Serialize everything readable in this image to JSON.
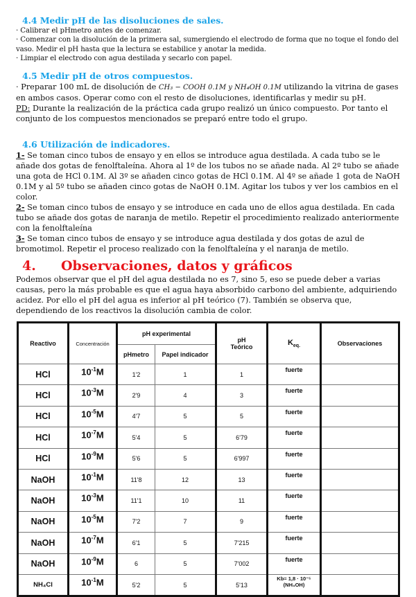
{
  "sections": {
    "s44": {
      "title": "4.4 Medir pH de las disoluciones de sales.",
      "lines": [
        "· Calibrar el pHmetro antes de comenzar.",
        "· Comenzar con la disolución de la primera sal, sumergiendo el electrodo de forma que no toque el fondo del vaso. Medir el pH hasta que la lectura se estabilice y anotar la medida.",
        "· Limpiar el electrodo con agua destilada y secarlo con papel."
      ]
    },
    "s45": {
      "title": "4.5 Medir pH de otros compuestos.",
      "p1_start": "· Preparar 100 mL de disolución de ",
      "formula": "CH₃ − COOH 0.1M y NH₄OH 0.1M",
      "p1_end": " utilizando la vitrina de gases en ambos casos. Operar como con el resto de disoluciones, identificarlas y medir su pH.",
      "pd_label": "PD:",
      "pd_text": " Durante la realización de la práctica cada grupo realizó un único compuesto. Por tanto el conjunto de los compuestos mencionados se preparó entre todo el grupo."
    },
    "s46": {
      "title": "4.6 Utilización de indicadores.",
      "items": [
        {
          "n": "1-",
          "text": " Se toman cinco tubos de ensayo y en ellos se introduce agua destilada. A cada tubo se le añade dos gotas de fenolftaleína. Ahora al 1º de los tubos no se añade nada. Al 2º tubo se añade una gota de HCl 0.1M. Al 3º se añaden cinco gotas de HCl 0.1M. Al 4º se añade 1 gota de NaOH 0.1M y al 5º tubo se añaden cinco gotas de NaOH 0.1M. Agitar los tubos y ver los cambios en el color."
        },
        {
          "n": "2-",
          "text": " Se toman cinco tubos de ensayo y se introduce en cada uno de ellos agua destilada. En cada tubo se añade dos gotas de naranja de metilo. Repetir el procedimiento realizado anteriormente con la fenolftaleína"
        },
        {
          "n": "3-",
          "text": " Se toman cinco tubos de ensayo y se introduce agua destilada y dos gotas de azul de bromotimol. Repetir el proceso realizado con la fenolftaleína y el naranja de metilo."
        }
      ]
    },
    "s4": {
      "num": "4.",
      "title": "Observaciones, datos y gráficos",
      "text": "Podemos observar que el pH del agua destilada no es 7, sino 5, eso se puede deber a varias causas, pero la más probable es que el agua haya absorbido carbono del ambiente, adquiriendo acidez. Por ello el pH del agua es inferior al pH teórico (7). También se observa que, dependiendo de los reactivos la disolución cambia de color."
    }
  },
  "table": {
    "headers": {
      "reactivo": "Reactivo",
      "concentracion": "Concentración",
      "ph_exp": "pH experimental",
      "phmetro": "pHmetro",
      "papel": "Papel indicador",
      "ph_teorico_1": "pH",
      "ph_teorico_2": "Teórico",
      "keq": "K",
      "keq_sub": "eq.",
      "obs": "Observaciones"
    },
    "rows": [
      {
        "reactivo": "HCl",
        "exp": "-1",
        "phmetro": "1'2",
        "papel": "1",
        "teorico": "1",
        "keq": "fuerte"
      },
      {
        "reactivo": "HCl",
        "exp": "-3",
        "phmetro": "2'9",
        "papel": "4",
        "teorico": "3",
        "keq": "fuerte"
      },
      {
        "reactivo": "HCl",
        "exp": "-5",
        "phmetro": "4'7",
        "papel": "5",
        "teorico": "5",
        "keq": "fuerte"
      },
      {
        "reactivo": "HCl",
        "exp": "-7",
        "phmetro": "5'4",
        "papel": "5",
        "teorico": "6'79",
        "keq": "fuerte"
      },
      {
        "reactivo": "HCl",
        "exp": "-9",
        "phmetro": "5'6",
        "papel": "5",
        "teorico": "6'997",
        "keq": "fuerte"
      },
      {
        "reactivo": "NaOH",
        "exp": "-1",
        "phmetro": "11'8",
        "papel": "12",
        "teorico": "13",
        "keq": "fuerte"
      },
      {
        "reactivo": "NaOH",
        "exp": "-3",
        "phmetro": "11'1",
        "papel": "10",
        "teorico": "11",
        "keq": "fuerte"
      },
      {
        "reactivo": "NaOH",
        "exp": "-5",
        "phmetro": "7'2",
        "papel": "7",
        "teorico": "9",
        "keq": "fuerte"
      },
      {
        "reactivo": "NaOH",
        "exp": "-7",
        "phmetro": "6'1",
        "papel": "5",
        "teorico": "7'215",
        "keq": "fuerte"
      },
      {
        "reactivo": "NaOH",
        "exp": "-9",
        "phmetro": "6",
        "papel": "5",
        "teorico": "7'002",
        "keq": "fuerte"
      },
      {
        "reactivo": "NH₄Cl",
        "exp": "-1",
        "phmetro": "5'2",
        "papel": "5",
        "teorico": "5'13",
        "keq": "Kb= 1,8 · 10⁻⁵",
        "keq2": "(NH₄OH)"
      }
    ]
  }
}
